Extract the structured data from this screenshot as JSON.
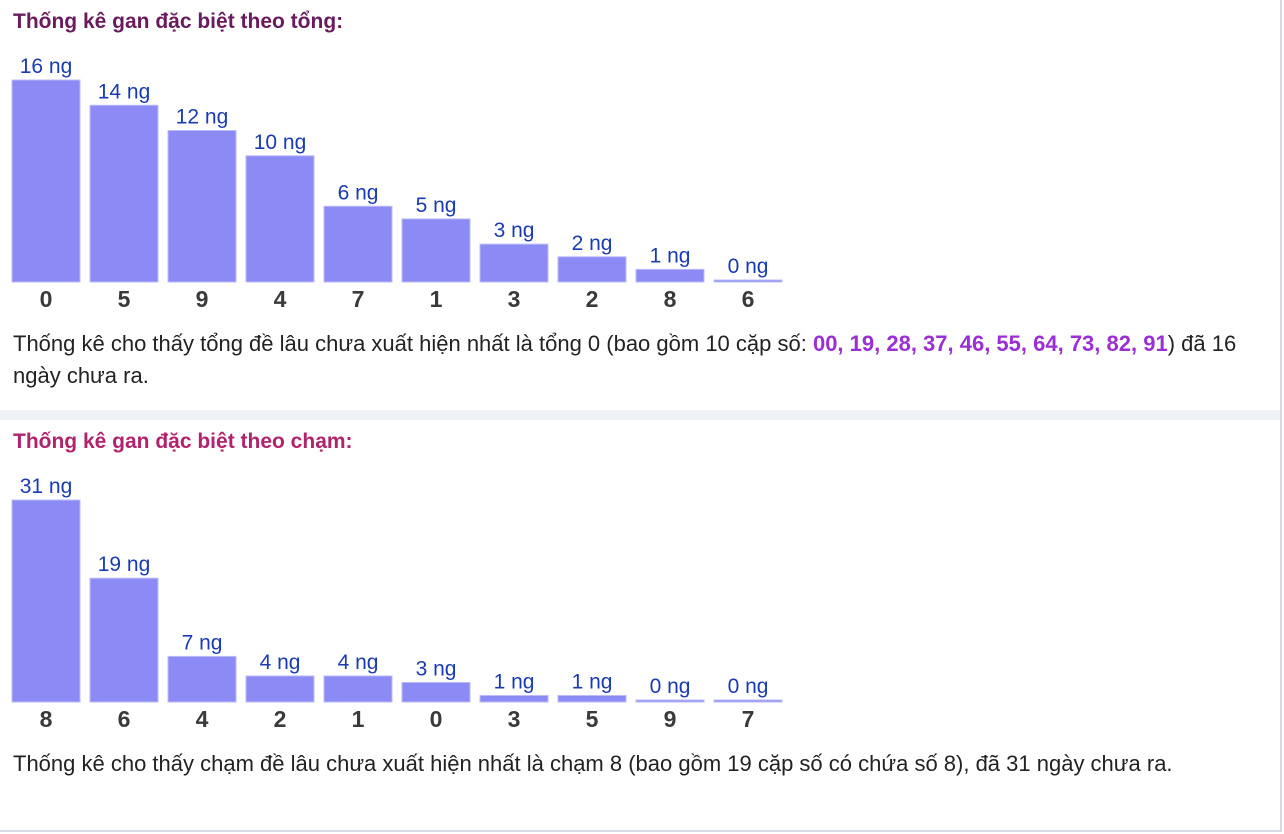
{
  "colors": {
    "bar": "#8c8af5",
    "bar_edge": "#bdbdf7",
    "value_label": "#1a3bb3",
    "category_label": "#3a3a3a",
    "title_tong": "#6a1b5e",
    "title_cham": "#b0246e",
    "highlight": "#9b2fd4"
  },
  "section_tong": {
    "title": "Thống kê gan đặc biệt theo tổng:",
    "summary_before": "Thống kê cho thấy tổng đề lâu chưa xuất hiện nhất là tổng 0 (bao gồm 10 cặp số: ",
    "summary_highlight": "00, 19, 28, 37, 46, 55, 64, 73, 82, 91",
    "summary_after": ") đã 16 ngày chưa ra."
  },
  "section_cham": {
    "title": "Thống kê gan đặc biệt theo chạm:",
    "summary": "Thống kê cho thấy chạm đề lâu chưa xuất hiện nhất là chạm 8 (bao gồm 19 cặp số có chứa số 8), đã 31 ngày chưa ra."
  },
  "chart_data": [
    {
      "type": "bar",
      "title": "Thống kê gan đặc biệt theo tổng:",
      "categories": [
        "0",
        "5",
        "9",
        "4",
        "7",
        "1",
        "3",
        "2",
        "8",
        "6"
      ],
      "values": [
        16,
        14,
        12,
        10,
        6,
        5,
        3,
        2,
        1,
        0
      ],
      "value_labels": [
        "16 ng",
        "14 ng",
        "12 ng",
        "10 ng",
        "6 ng",
        "5 ng",
        "3 ng",
        "2 ng",
        "1 ng",
        "0 ng"
      ],
      "xlabel": "",
      "ylabel": "",
      "ylim": [
        0,
        16
      ],
      "grid": false
    },
    {
      "type": "bar",
      "title": "Thống kê gan đặc biệt theo chạm:",
      "categories": [
        "8",
        "6",
        "4",
        "2",
        "1",
        "0",
        "3",
        "5",
        "9",
        "7"
      ],
      "values": [
        31,
        19,
        7,
        4,
        4,
        3,
        1,
        1,
        0,
        0
      ],
      "value_labels": [
        "31 ng",
        "19 ng",
        "7 ng",
        "4 ng",
        "4 ng",
        "3 ng",
        "1 ng",
        "1 ng",
        "0 ng",
        "0 ng"
      ],
      "xlabel": "",
      "ylabel": "",
      "ylim": [
        0,
        31
      ],
      "grid": false
    }
  ]
}
